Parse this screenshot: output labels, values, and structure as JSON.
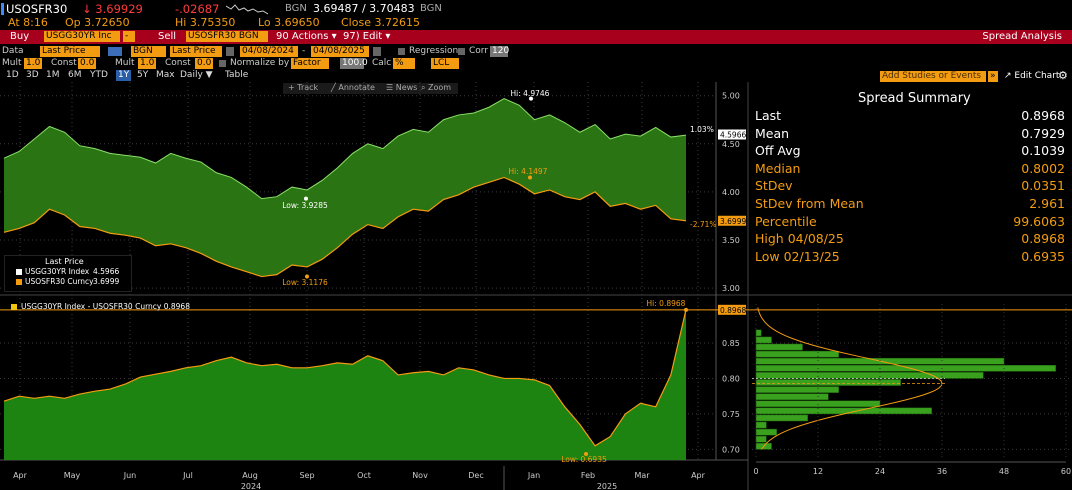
{
  "header": {
    "ticker": "USOSFR30",
    "last": "↓ 3.69929",
    "change": "-.02687",
    "source": "BGN",
    "bidask": "3.69487 / 3.70483",
    "source2": "BGN",
    "at": "At 8:16",
    "open": "Op 3.72650",
    "high": "Hi 3.75350",
    "low": "Lo 3.69650",
    "close": "Close 3.72615"
  },
  "actionbar": {
    "buy": "Buy",
    "buy_ticker": "USGG30YR Inc",
    "buy_dd": "-",
    "sell": "Sell",
    "sell_ticker": "USOSFR30 BGN",
    "actions": "90 Actions ▾",
    "edit": "97) Edit ▾",
    "title": "Spread Analysis"
  },
  "settings": {
    "data_label": "Data",
    "data_value": "Last Price",
    "src_value": "BGN",
    "src2_value": "Last Price",
    "date_from": "04/08/2024",
    "dash": "-",
    "date_to": "04/08/2025",
    "regression": "Regression",
    "corr": "Corr",
    "corr_value": "120",
    "mult_label": "Mult",
    "mult_value": "1.0",
    "const_label": "Const",
    "const_value": "0.0",
    "mult2_label": "Mult",
    "mult2_value": "1.0",
    "const2_label": "Const",
    "const2_value": "0.0",
    "normalize": "Normalize by",
    "factor": "Factor",
    "factor_value": "100.0",
    "calc": "Calc",
    "calc_value": "%",
    "lcl": "LCL"
  },
  "periods": [
    "1D",
    "3D",
    "1M",
    "6M",
    "YTD",
    "1Y",
    "5Y",
    "Max",
    "Daily ▼",
    "Table"
  ],
  "selected_period": "1Y",
  "tools": {
    "add_studies": "Add Studies or Events",
    "edit_chart": "↗ Edit Chart",
    "gear": "⚙",
    "track": "+ Track",
    "annotate": "╱ Annotate",
    "news": "☰ News",
    "zoom": "⌕ Zoom"
  },
  "legend": {
    "title": "Last Price",
    "items": [
      {
        "name": "USGG30YR Index",
        "value": "4.5966",
        "color": "#ffffff"
      },
      {
        "name": "USOSFR30 Curncy",
        "value": "3.6999",
        "color": "#f39c12"
      }
    ],
    "spread_label": "USGG30YR Index - USOSFR30 Curncy 0.8968"
  },
  "summary": {
    "title": "Spread Summary",
    "rows": [
      {
        "key": "Last",
        "value": "0.8968",
        "color": "#ffffff"
      },
      {
        "key": "Mean",
        "value": "0.7929",
        "color": "#ffffff"
      },
      {
        "key": "Off Avg",
        "value": "0.1039",
        "color": "#ffffff"
      },
      {
        "key": "Median",
        "value": "0.8002",
        "color": "#f39c12"
      },
      {
        "key": "StDev",
        "value": "0.0351",
        "color": "#f39c12"
      },
      {
        "key": "StDev from Mean",
        "value": "2.961",
        "color": "#f39c12"
      },
      {
        "key": "Percentile",
        "value": "99.6063",
        "color": "#f39c12"
      },
      {
        "key": "High 04/08/25",
        "value": "0.8968",
        "color": "#f39c12"
      },
      {
        "key": "Low 02/13/25",
        "value": "0.6935",
        "color": "#f39c12"
      }
    ]
  },
  "chart_data": [
    {
      "type": "area",
      "series": [
        {
          "name": "USGG30YR Index",
          "values": [
            4.35,
            4.42,
            4.55,
            4.68,
            4.62,
            4.48,
            4.45,
            4.4,
            4.38,
            4.36,
            4.3,
            4.4,
            4.35,
            4.31,
            4.2,
            4.15,
            4.05,
            3.93,
            3.95,
            4.05,
            4.02,
            4.12,
            4.25,
            4.4,
            4.5,
            4.45,
            4.58,
            4.65,
            4.62,
            4.75,
            4.8,
            4.82,
            4.88,
            4.97,
            4.9,
            4.75,
            4.8,
            4.72,
            4.62,
            4.7,
            4.55,
            4.6,
            4.58,
            4.67,
            4.57,
            4.59
          ]
        },
        {
          "name": "USOSFR30 Curncy",
          "values": [
            3.58,
            3.62,
            3.68,
            3.82,
            3.76,
            3.64,
            3.62,
            3.57,
            3.55,
            3.52,
            3.44,
            3.46,
            3.42,
            3.36,
            3.28,
            3.22,
            3.17,
            3.12,
            3.14,
            3.24,
            3.22,
            3.3,
            3.42,
            3.56,
            3.66,
            3.62,
            3.74,
            3.82,
            3.8,
            3.92,
            3.97,
            4.05,
            4.1,
            4.15,
            4.08,
            3.98,
            4.02,
            3.95,
            3.92,
            4.0,
            3.85,
            3.88,
            3.82,
            3.86,
            3.72,
            3.7
          ]
        }
      ],
      "annotations": {
        "hi": "Hi: 4.9746",
        "low_white": "Low: 3.9285",
        "hi_orange": "Hi: 4.1497",
        "low_orange": "Low: 3.1176",
        "pct_top": "1.03%",
        "pct_bottom": "-2.71%",
        "last_white": "4.5966",
        "last_orange": "3.6999"
      },
      "yticks": [
        "5.00",
        "4.50",
        "4.00",
        "3.50",
        "3.00"
      ],
      "ylim": [
        2.98,
        5.08
      ]
    },
    {
      "type": "area",
      "series": [
        {
          "name": "USGG30YR Index - USOSFR30 Curncy",
          "values": [
            0.768,
            0.775,
            0.772,
            0.775,
            0.772,
            0.778,
            0.782,
            0.785,
            0.792,
            0.802,
            0.806,
            0.81,
            0.815,
            0.818,
            0.825,
            0.83,
            0.822,
            0.818,
            0.82,
            0.815,
            0.815,
            0.818,
            0.822,
            0.82,
            0.832,
            0.825,
            0.805,
            0.808,
            0.81,
            0.805,
            0.815,
            0.812,
            0.805,
            0.8,
            0.8,
            0.798,
            0.79,
            0.76,
            0.735,
            0.705,
            0.718,
            0.75,
            0.765,
            0.76,
            0.805,
            0.897
          ]
        }
      ],
      "annotations": {
        "hi": "Hi: 0.8968",
        "low": "Low: 0.6935",
        "last": "0.8968"
      },
      "yticks": [
        "0.85",
        "0.80",
        "0.75",
        "0.70"
      ],
      "ylim": [
        0.685,
        0.905
      ]
    },
    {
      "type": "bar",
      "orientation": "horizontal",
      "bins": [
        0.7,
        0.71,
        0.72,
        0.73,
        0.74,
        0.75,
        0.76,
        0.77,
        0.78,
        0.79,
        0.8,
        0.81,
        0.82,
        0.83,
        0.84,
        0.85,
        0.86
      ],
      "values": [
        3,
        2,
        4,
        2,
        10,
        34,
        24,
        14,
        16,
        28,
        44,
        58,
        48,
        16,
        9,
        3,
        1
      ],
      "xticks": [
        "0",
        "12",
        "24",
        "36",
        "48",
        "60"
      ],
      "xlim": [
        0,
        60
      ]
    }
  ],
  "xaxis": {
    "months": [
      "Apr",
      "May",
      "Jun",
      "Jul",
      "Aug",
      "Sep",
      "Oct",
      "Nov",
      "Dec",
      "Jan",
      "Feb",
      "Mar",
      "Apr"
    ],
    "years": [
      "2024",
      "2025"
    ]
  },
  "colors": {
    "accent": "#f39c12",
    "red_bar": "#a7001d",
    "green": "#2e9b1f",
    "dark_green": "#1f5e0e"
  }
}
